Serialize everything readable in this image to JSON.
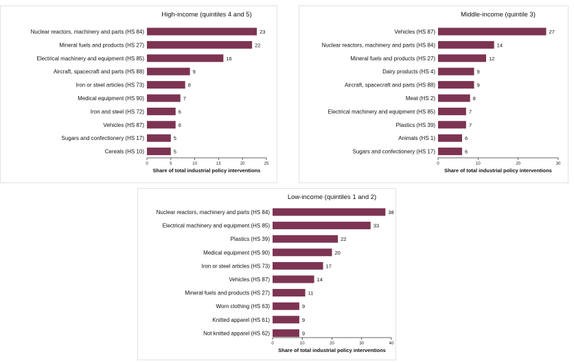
{
  "colors": {
    "bar": "#7d3452",
    "background": "#ffffff",
    "frame": "#e2e2e2"
  },
  "chart_data": [
    {
      "type": "bar",
      "orientation": "horizontal",
      "title": "High-income (quintiles 4 and 5)",
      "xlabel": "Share of total industrial policy interventions",
      "ylabel": "",
      "xlim": [
        0,
        25
      ],
      "xticks": [
        0,
        5,
        10,
        15,
        20,
        25
      ],
      "categories": [
        "Nuclear reactors, machinery and parts (HS 84)",
        "Mineral fuels and products (HS 27)",
        "Electrical machinery and equipment (HS 85)",
        "Aircraft, spacecraft and parts (HS 88)",
        "Iron or steel articles (HS 73)",
        "Medical equipment (HS 90)",
        "Iron and steel (HS 72)",
        "Vehicles (HS 87)",
        "Sugars and confectionery (HS 17)",
        "Cereals (HS 10)"
      ],
      "values": [
        23,
        22,
        16,
        9,
        8,
        7,
        6,
        6,
        5,
        5
      ],
      "value_labels": [
        "23",
        "22",
        "16",
        "9",
        "8",
        "7",
        "6",
        "6",
        "5",
        "5"
      ],
      "grid": false
    },
    {
      "type": "bar",
      "orientation": "horizontal",
      "title": "Middle-income (quintile 3)",
      "xlabel": "Share of total industrial policy interventions",
      "ylabel": "",
      "xlim": [
        0,
        30
      ],
      "xticks": [
        0,
        10,
        20,
        30
      ],
      "categories": [
        "Vehicles (HS 87)",
        "Nuclear reactors, machinery and parts (HS 84)",
        "Mineral fuels and products (HS 27)",
        "Dairy products (HS 4)",
        "Aircraft, spacecraft and parts (HS 88)",
        "Meat (HS 2)",
        "Electrical machinery and equipment (HS 85)",
        "Plastics (HS 39)",
        "Animals (HS 1)",
        "Sugars and confectionery (HS 17)"
      ],
      "values": [
        27,
        14,
        12,
        9,
        9,
        8,
        7,
        7,
        6,
        6
      ],
      "value_labels": [
        "27",
        "14",
        "12",
        "9",
        "9",
        "8",
        "7",
        "7",
        "6",
        "6"
      ],
      "grid": false
    },
    {
      "type": "bar",
      "orientation": "horizontal",
      "title": "Low-income (quintiles 1 and 2)",
      "xlabel": "Share of total industrial policy interventions",
      "ylabel": "",
      "xlim": [
        0,
        40
      ],
      "xticks": [
        0,
        10,
        20,
        30,
        40
      ],
      "categories": [
        "Nuclear reactors, machinery and parts (HS 84)",
        "Electrical machinery and equipment (HS 85)",
        "Plastics (HS 39)",
        "Medical equipment (HS 90)",
        "Iron or steel articles (HS 73)",
        "Vehicles (HS 87)",
        "Mineral fuels and products (HS 27)",
        "Worn clothing (HS 63)",
        "Knitted apparel (HS 61)",
        "Not knitted apparel (HS 62)"
      ],
      "values": [
        38,
        33,
        22,
        20,
        17,
        14,
        11,
        9,
        9,
        9
      ],
      "value_labels": [
        "38",
        "33",
        "22",
        "20",
        "17",
        "14",
        "11",
        "9",
        "9",
        "9"
      ],
      "grid": false
    }
  ]
}
